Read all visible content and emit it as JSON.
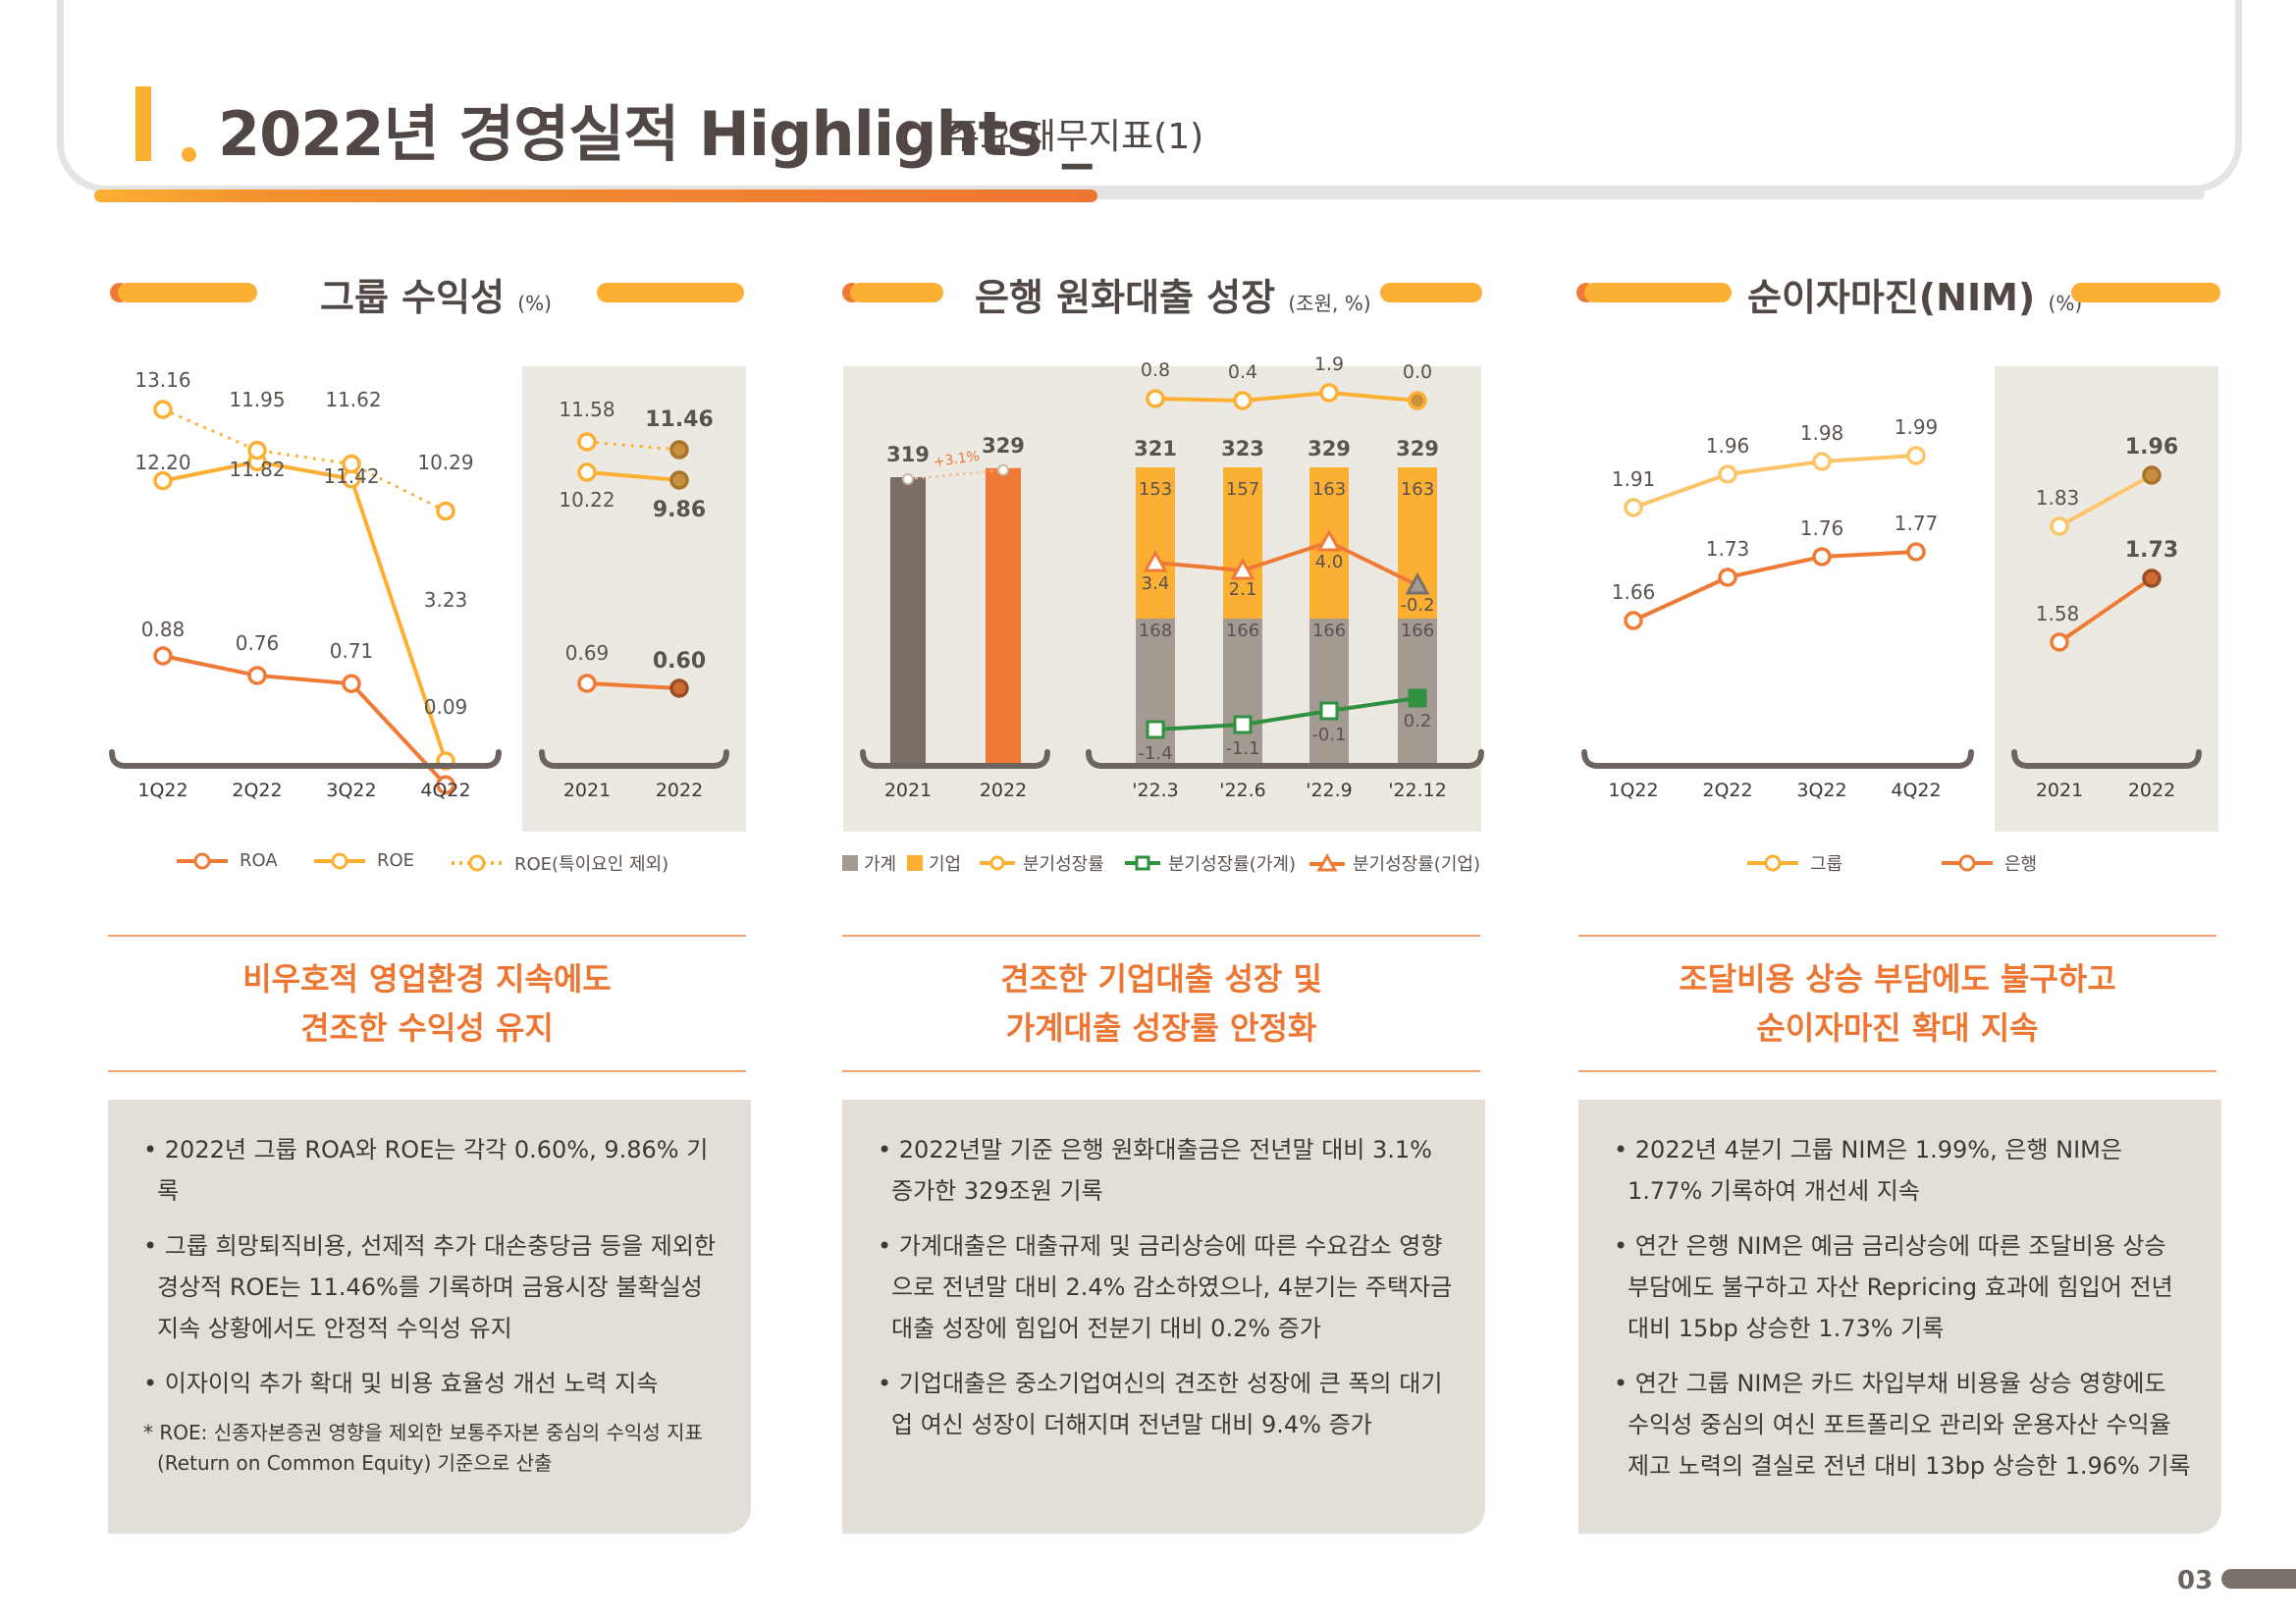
{
  "header": {
    "title": "2022년 경영실적 Highlights _",
    "subtitle": "주요 재무지표(1)"
  },
  "sections": {
    "profit": {
      "title": "그룹 수익성",
      "unit": "(%)",
      "legend": [
        "ROA",
        "ROE",
        "ROE(특이요인 제외)"
      ],
      "headline1": "비우호적 영업환경 지속에도",
      "headline2": "견조한 수익성 유지",
      "bullets": [
        "• 2022년 그룹 ROA와 ROE는 각각 0.60%, 9.86% 기록",
        "• 그룹 희망퇴직비용, 선제적 추가 대손충당금 등을 제외한 경상적 ROE는 11.46%를 기록하며 금융시장 불확실성 지속 상황에서도 안정적 수익성 유지",
        "• 이자이익 추가 확대 및 비용 효율성 개선 노력 지속"
      ],
      "note": "* ROE: 신종자본증권 영향을 제외한 보통주자본 중심의 수익성 지표(Return on Common Equity) 기준으로 산출"
    },
    "loans": {
      "title": "은행 원화대출 성장",
      "unit": "(조원, %)",
      "legend": [
        "가계",
        "기업",
        "분기성장률",
        "분기성장률(가계)",
        "분기성장률(기업)"
      ],
      "headline1": "견조한 기업대출 성장 및",
      "headline2": "가계대출 성장률 안정화",
      "bullets": [
        "• 2022년말 기준 은행 원화대출금은 전년말 대비 3.1% 증가한 329조원 기록",
        "• 가계대출은 대출규제 및 금리상승에 따른 수요감소 영향으로 전년말 대비 2.4% 감소하였으나, 4분기는 주택자금대출 성장에 힘입어 전분기 대비 0.2% 증가",
        "• 기업대출은 중소기업여신의 견조한 성장에 큰 폭의 대기업 여신 성장이 더해지며 전년말 대비 9.4% 증가"
      ]
    },
    "nim": {
      "title": "순이자마진(NIM)",
      "unit": "(%)",
      "legend": [
        "그룹",
        "은행"
      ],
      "headline1": "조달비용 상승 부담에도 불구하고",
      "headline2": "순이자마진 확대 지속",
      "bullets": [
        "• 2022년 4분기 그룹 NIM은 1.99%, 은행 NIM은 1.77% 기록하여 개선세 지속",
        "• 연간 은행 NIM은 예금 금리상승에 따른 조달비용 상승 부담에도 불구하고 자산 Repricing 효과에 힘입어 전년 대비 15bp 상승한 1.73% 기록",
        "• 연간 그룹 NIM은 카드 차입부채 비용율 상승 영향에도 수익성 중심의 여신 포트폴리오 관리와 운용자산 수익율 제고 노력의 결실로 전년 대비 13bp 상승한 1.96% 기록"
      ]
    }
  },
  "page_number": "03",
  "colors": {
    "orange": "#ef7a36",
    "yellow": "#fbb034",
    "brown": "#7a6e66",
    "grey": "#a39a92",
    "green": "#2f9140",
    "panel": "#ece8e2"
  },
  "chart_data": [
    {
      "type": "line",
      "id": "profitability",
      "categories": [
        "1Q22",
        "2Q22",
        "3Q22",
        "4Q22"
      ],
      "series": [
        {
          "name": "ROA",
          "values": [
            0.88,
            0.76,
            0.71,
            0.09
          ],
          "labels": [
            "0.88",
            "0.76",
            "0.71",
            "0.09"
          ]
        },
        {
          "name": "ROE",
          "values": [
            12.2,
            11.82,
            11.42,
            3.23
          ],
          "labels": [
            "12.20",
            "11.82",
            "11.42",
            "3.23"
          ]
        },
        {
          "name": "ROE(특이요인 제외)",
          "values": [
            13.16,
            11.95,
            11.62,
            10.29
          ],
          "labels": [
            "13.16",
            "11.95",
            "11.62",
            "10.29"
          ]
        }
      ],
      "annual": {
        "categories": [
          "2021",
          "2022"
        ],
        "series": [
          {
            "name": "ROA",
            "values": [
              0.69,
              0.6
            ],
            "labels": [
              "0.69",
              "0.60"
            ]
          },
          {
            "name": "ROE",
            "values": [
              10.22,
              9.86
            ],
            "labels": [
              "10.22",
              "9.86"
            ]
          },
          {
            "name": "ROE(특이요인 제외)",
            "values": [
              11.58,
              11.46
            ],
            "labels": [
              "11.58",
              "11.46"
            ]
          }
        ]
      }
    },
    {
      "type": "bar",
      "id": "annual-loans",
      "categories": [
        "2021",
        "2022"
      ],
      "values": [
        319,
        329
      ],
      "labels": [
        "319",
        "329"
      ],
      "growth_label": "+3.1%"
    },
    {
      "type": "bar",
      "id": "quarterly-loans",
      "stacked": true,
      "categories": [
        "'22.3",
        "'22.6",
        "'22.9",
        "'22.12"
      ],
      "series": [
        {
          "name": "가계",
          "values": [
            168,
            166,
            166,
            166
          ],
          "labels": [
            "168",
            "166",
            "166",
            "166"
          ]
        },
        {
          "name": "기업",
          "values": [
            153,
            157,
            163,
            163
          ],
          "labels": [
            "153",
            "157",
            "163",
            "163"
          ]
        }
      ],
      "totals": [
        "321",
        "323",
        "329",
        "329"
      ],
      "lines": [
        {
          "name": "분기성장률",
          "values": [
            0.8,
            0.4,
            1.9,
            0.0
          ],
          "labels": [
            "0.8",
            "0.4",
            "1.9",
            "0.0"
          ]
        },
        {
          "name": "분기성장률(가계)",
          "values": [
            -1.4,
            -1.1,
            -0.1,
            0.2
          ],
          "labels": [
            "-1.4",
            "-1.1",
            "-0.1",
            "0.2"
          ]
        },
        {
          "name": "분기성장률(기업)",
          "values": [
            3.4,
            2.1,
            4.0,
            -0.2
          ],
          "labels": [
            "3.4",
            "2.1",
            "4.0",
            "-0.2"
          ]
        }
      ]
    },
    {
      "type": "line",
      "id": "nim",
      "categories": [
        "1Q22",
        "2Q22",
        "3Q22",
        "4Q22"
      ],
      "series": [
        {
          "name": "그룹",
          "values": [
            1.91,
            1.96,
            1.98,
            1.99
          ],
          "labels": [
            "1.91",
            "1.96",
            "1.98",
            "1.99"
          ]
        },
        {
          "name": "은행",
          "values": [
            1.66,
            1.73,
            1.76,
            1.77
          ],
          "labels": [
            "1.66",
            "1.73",
            "1.76",
            "1.77"
          ]
        }
      ],
      "annual": {
        "categories": [
          "2021",
          "2022"
        ],
        "series": [
          {
            "name": "그룹",
            "values": [
              1.83,
              1.96
            ],
            "labels": [
              "1.83",
              "1.96"
            ]
          },
          {
            "name": "은행",
            "values": [
              1.58,
              1.73
            ],
            "labels": [
              "1.58",
              "1.73"
            ]
          }
        ]
      }
    }
  ]
}
